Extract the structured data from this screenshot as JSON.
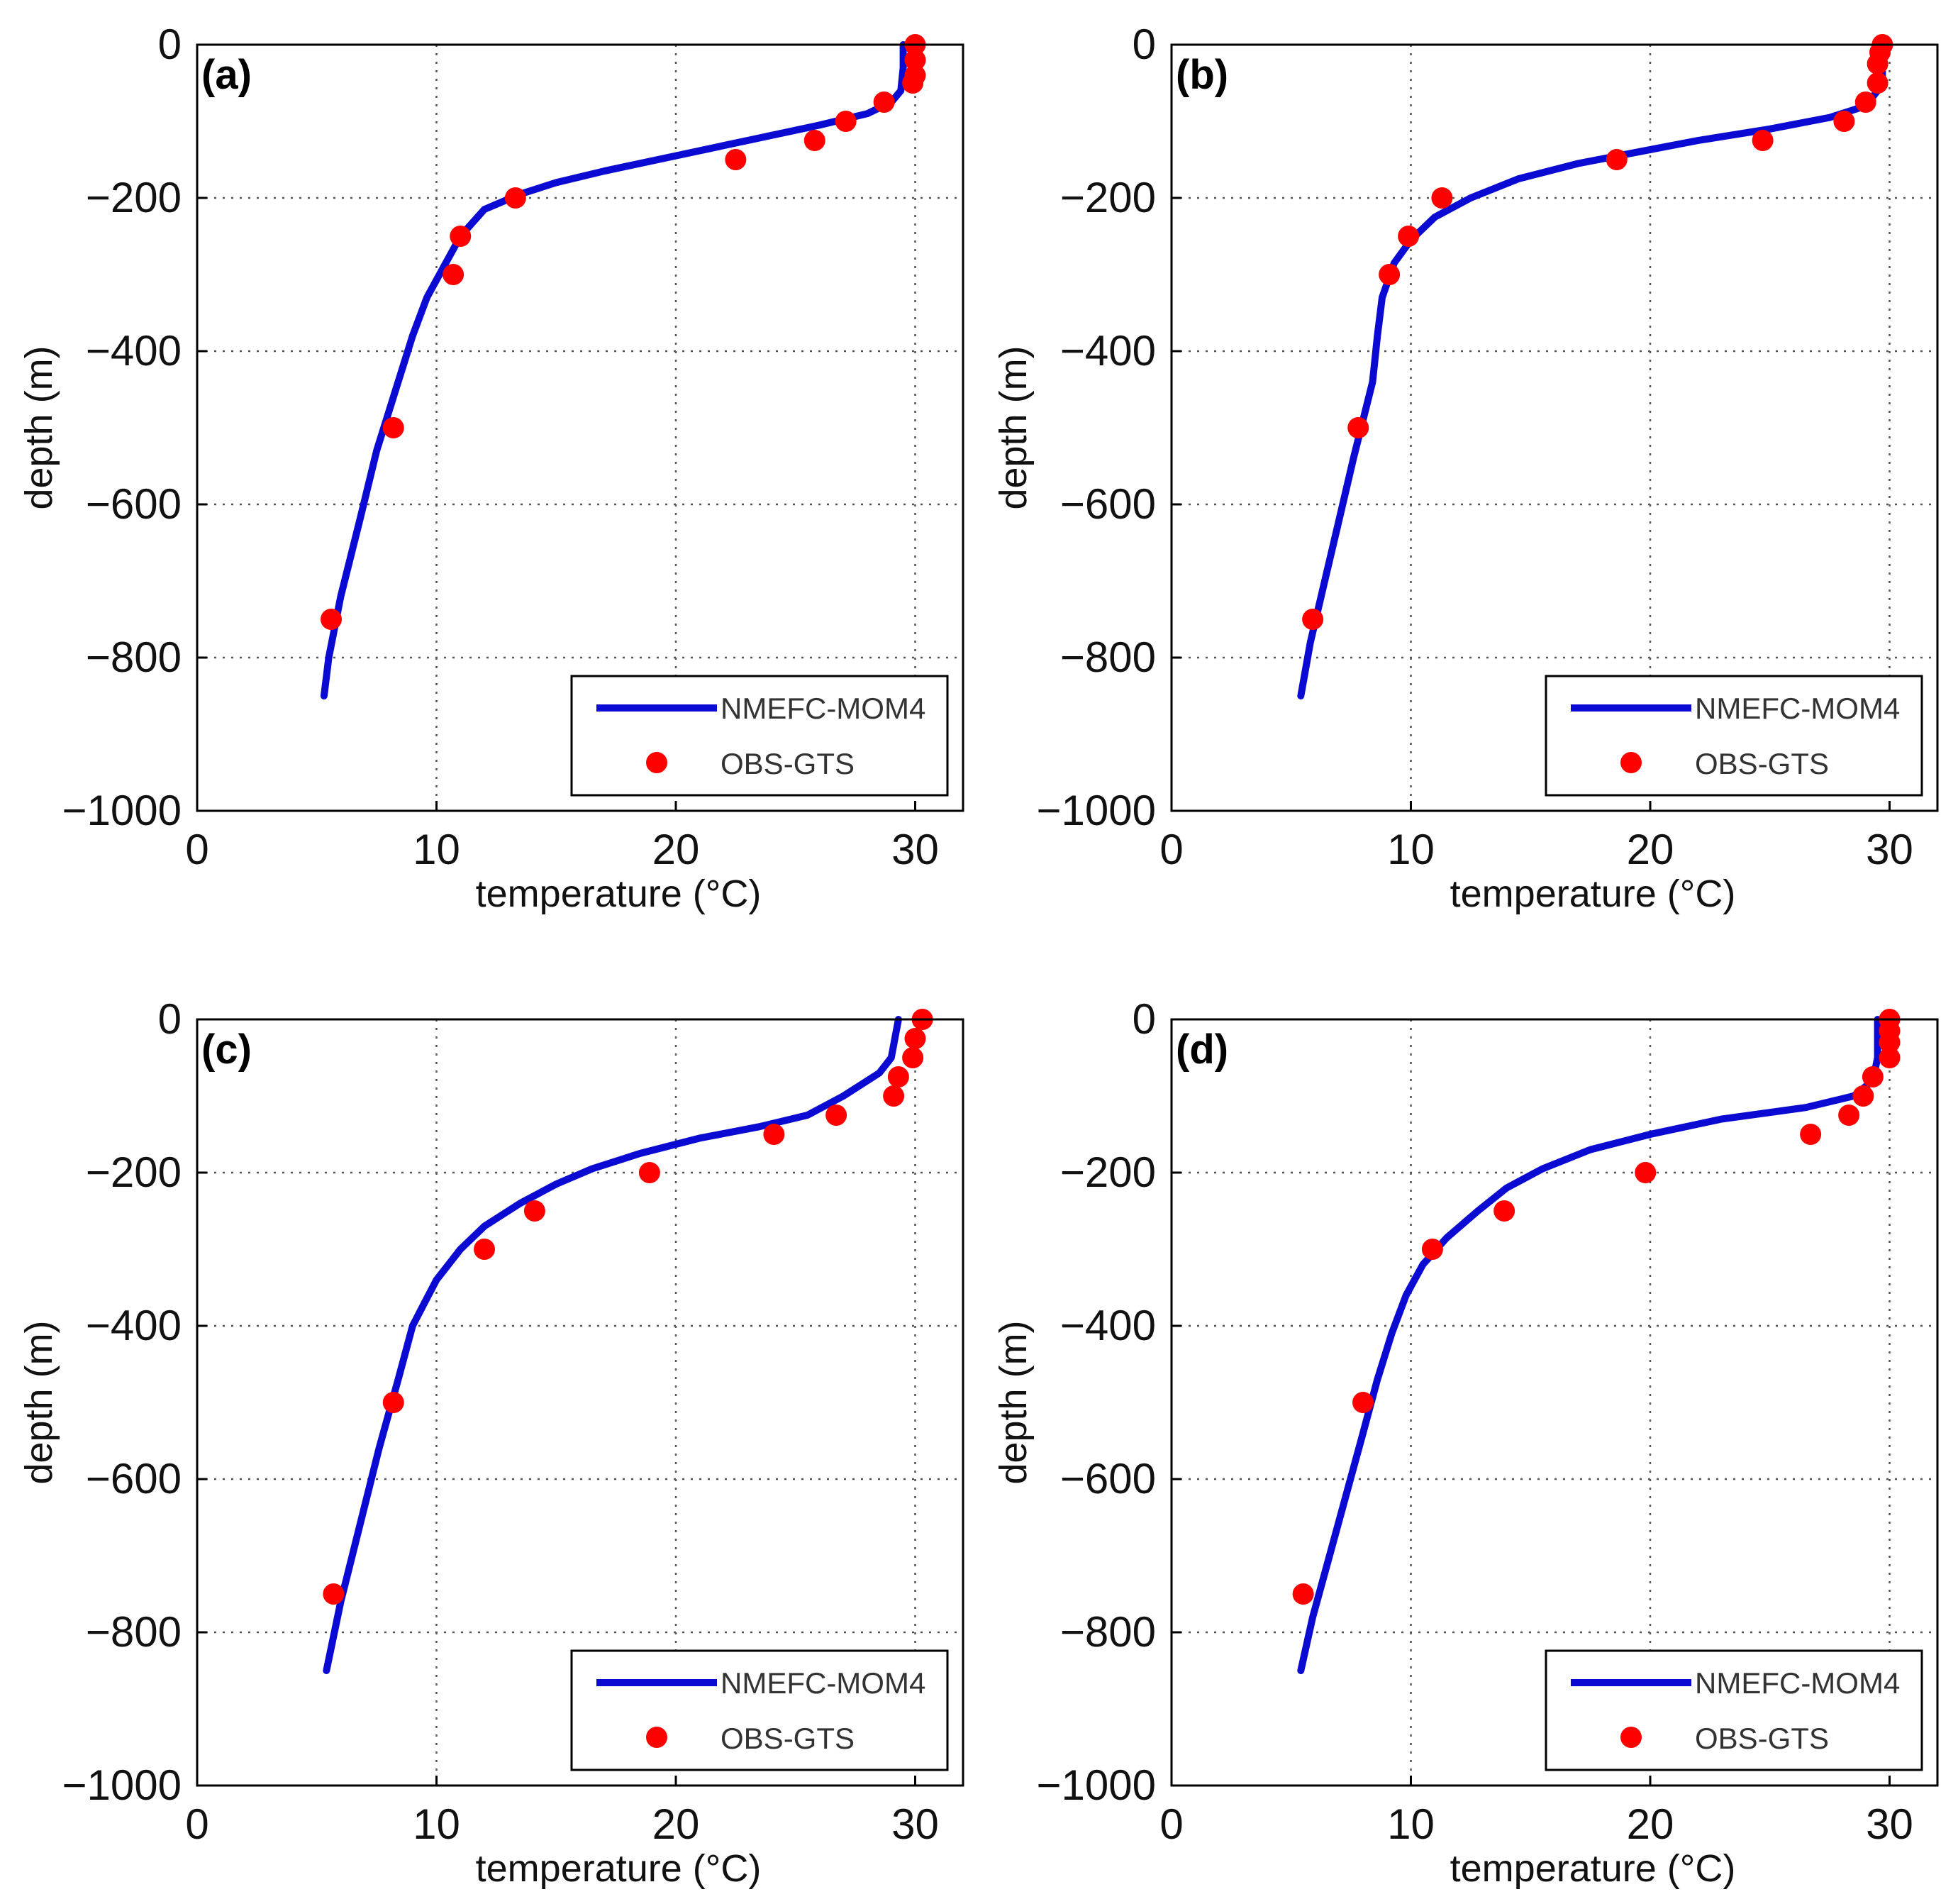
{
  "chart_data": [
    {
      "type": "line",
      "panel_label": "(a)",
      "xlabel": "temperature (°C)",
      "ylabel": "depth (m)",
      "xlim": [
        0,
        32
      ],
      "ylim": [
        -1000,
        0
      ],
      "xticks": [
        0,
        10,
        20,
        30
      ],
      "xtick_labels": [
        "0",
        "10",
        "20",
        "30"
      ],
      "yticks": [
        0,
        -200,
        -400,
        -600,
        -800,
        -1000
      ],
      "ytick_labels": [
        "0",
        "−200",
        "−400",
        "−600",
        "−800",
        "−1000"
      ],
      "grid": true,
      "legend_position": "bottom-right",
      "legend": [
        "NMEFC-MOM4",
        "OBS-GTS"
      ],
      "series": [
        {
          "name": "NMEFC-MOM4",
          "kind": "line",
          "color": "#0a0ad2",
          "x": [
            29.5,
            29.5,
            29.4,
            29.0,
            28.0,
            26.0,
            23.0,
            20.0,
            17.0,
            15.0,
            13.5,
            12.0,
            11.0,
            10.3,
            9.6,
            9.0,
            8.3,
            7.5,
            6.8,
            6.0,
            5.5,
            5.3
          ],
          "y": [
            0,
            -30,
            -60,
            -75,
            -90,
            -105,
            -125,
            -145,
            -165,
            -180,
            -195,
            -215,
            -250,
            -290,
            -330,
            -380,
            -450,
            -530,
            -620,
            -720,
            -800,
            -850
          ]
        },
        {
          "name": "OBS-GTS",
          "kind": "scatter",
          "color": "#ff0000",
          "x": [
            30.0,
            30.0,
            30.0,
            29.9,
            28.7,
            27.1,
            25.8,
            22.5,
            13.3,
            11.0,
            10.7,
            8.2,
            5.6
          ],
          "y": [
            0,
            -20,
            -40,
            -50,
            -75,
            -100,
            -125,
            -150,
            -200,
            -250,
            -300,
            -500,
            -750
          ]
        }
      ]
    },
    {
      "type": "line",
      "panel_label": "(b)",
      "xlabel": "temperature (°C)",
      "ylabel": "depth (m)",
      "xlim": [
        0,
        32
      ],
      "ylim": [
        -1000,
        0
      ],
      "xticks": [
        0,
        10,
        20,
        30
      ],
      "xtick_labels": [
        "0",
        "10",
        "20",
        "30"
      ],
      "yticks": [
        0,
        -200,
        -400,
        -600,
        -800,
        -1000
      ],
      "ytick_labels": [
        "0",
        "−200",
        "−400",
        "−600",
        "−800",
        "−1000"
      ],
      "grid": true,
      "legend_position": "bottom-right",
      "legend": [
        "NMEFC-MOM4",
        "OBS-GTS"
      ],
      "series": [
        {
          "name": "NMEFC-MOM4",
          "kind": "line",
          "color": "#0a0ad2",
          "x": [
            29.7,
            29.7,
            29.5,
            29.0,
            27.5,
            25.0,
            22.0,
            19.5,
            17.0,
            14.5,
            12.5,
            11.0,
            10.0,
            9.3,
            8.8,
            8.6,
            8.4,
            8.0,
            7.6,
            7.0,
            6.4,
            5.8,
            5.4
          ],
          "y": [
            0,
            -40,
            -60,
            -80,
            -95,
            -110,
            -125,
            -140,
            -155,
            -175,
            -200,
            -225,
            -255,
            -285,
            -330,
            -380,
            -440,
            -490,
            -540,
            -620,
            -700,
            -780,
            -850
          ]
        },
        {
          "name": "OBS-GTS",
          "kind": "scatter",
          "color": "#ff0000",
          "x": [
            29.7,
            29.6,
            29.5,
            29.5,
            29.0,
            28.1,
            24.7,
            18.6,
            11.3,
            9.9,
            9.1,
            7.8,
            5.9
          ],
          "y": [
            0,
            -10,
            -25,
            -50,
            -75,
            -100,
            -125,
            -150,
            -200,
            -250,
            -300,
            -500,
            -750
          ]
        }
      ]
    },
    {
      "type": "line",
      "panel_label": "(c)",
      "xlabel": "temperature (°C)",
      "ylabel": "depth (m)",
      "xlim": [
        0,
        32
      ],
      "ylim": [
        -1000,
        0
      ],
      "xticks": [
        0,
        10,
        20,
        30
      ],
      "xtick_labels": [
        "0",
        "10",
        "20",
        "30"
      ],
      "yticks": [
        0,
        -200,
        -400,
        -600,
        -800,
        -1000
      ],
      "ytick_labels": [
        "0",
        "−200",
        "−400",
        "−600",
        "−800",
        "−1000"
      ],
      "grid": true,
      "legend_position": "bottom-right",
      "legend": [
        "NMEFC-MOM4",
        "OBS-GTS"
      ],
      "series": [
        {
          "name": "NMEFC-MOM4",
          "kind": "line",
          "color": "#0a0ad2",
          "x": [
            29.3,
            29.0,
            28.5,
            27.0,
            25.5,
            23.5,
            21.0,
            18.5,
            16.5,
            15.0,
            13.5,
            12.0,
            11.0,
            10.0,
            9.5,
            9.0,
            8.4,
            7.6,
            6.8,
            6.0,
            5.4
          ],
          "y": [
            0,
            -50,
            -70,
            -100,
            -125,
            -140,
            -155,
            -175,
            -195,
            -215,
            -240,
            -270,
            -300,
            -340,
            -370,
            -400,
            -470,
            -560,
            -660,
            -760,
            -850
          ]
        },
        {
          "name": "OBS-GTS",
          "kind": "scatter",
          "color": "#ff0000",
          "x": [
            30.3,
            30.0,
            29.9,
            29.3,
            29.1,
            26.7,
            24.1,
            18.9,
            14.1,
            12.0,
            8.2,
            5.7
          ],
          "y": [
            0,
            -25,
            -50,
            -75,
            -100,
            -125,
            -150,
            -200,
            -250,
            -300,
            -500,
            -750
          ]
        }
      ]
    },
    {
      "type": "line",
      "panel_label": "(d)",
      "xlabel": "temperature (°C)",
      "ylabel": "depth (m)",
      "xlim": [
        0,
        32
      ],
      "ylim": [
        -1000,
        0
      ],
      "xticks": [
        0,
        10,
        20,
        30
      ],
      "xtick_labels": [
        "0",
        "10",
        "20",
        "30"
      ],
      "yticks": [
        0,
        -200,
        -400,
        -600,
        -800,
        -1000
      ],
      "ytick_labels": [
        "0",
        "−200",
        "−400",
        "−600",
        "−800",
        "−1000"
      ],
      "grid": true,
      "legend_position": "bottom-right",
      "legend": [
        "NMEFC-MOM4",
        "OBS-GTS"
      ],
      "series": [
        {
          "name": "NMEFC-MOM4",
          "kind": "line",
          "color": "#0a0ad2",
          "x": [
            29.5,
            29.5,
            29.3,
            28.5,
            26.5,
            23.0,
            20.0,
            17.5,
            15.5,
            14.0,
            12.8,
            11.5,
            10.5,
            9.8,
            9.2,
            8.6,
            8.0,
            7.3,
            6.6,
            5.9,
            5.4
          ],
          "y": [
            0,
            -50,
            -80,
            -100,
            -115,
            -130,
            -150,
            -170,
            -195,
            -220,
            -250,
            -285,
            -320,
            -360,
            -410,
            -470,
            -540,
            -620,
            -700,
            -780,
            -850
          ]
        },
        {
          "name": "OBS-GTS",
          "kind": "scatter",
          "color": "#ff0000",
          "x": [
            30.0,
            30.0,
            30.0,
            30.0,
            29.3,
            28.9,
            28.3,
            26.7,
            19.8,
            13.9,
            10.9,
            8.0,
            5.5
          ],
          "y": [
            0,
            -15,
            -30,
            -50,
            -75,
            -100,
            -125,
            -150,
            -200,
            -250,
            -300,
            -500,
            -750
          ]
        }
      ]
    }
  ]
}
